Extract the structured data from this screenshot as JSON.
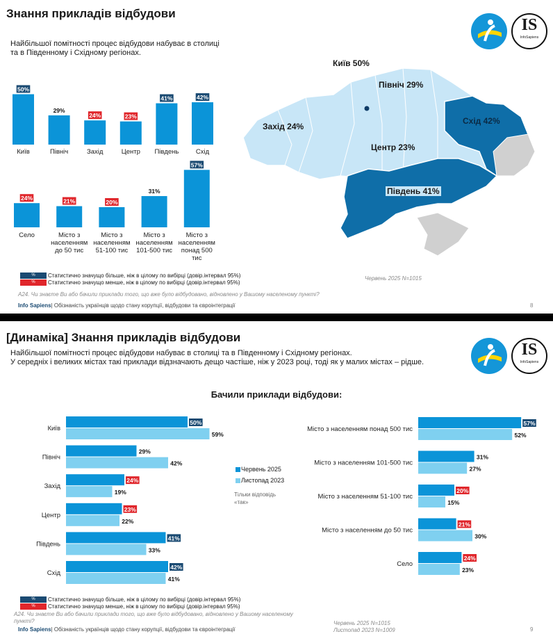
{
  "slide1": {
    "title": "Знання прикладів відбудови",
    "subtitle": "Найбільшої помітності процес відбудови набуває в столиці та в Південному і Східному регіонах.",
    "regions_chart": {
      "type": "bar",
      "categories": [
        "Київ",
        "Північ",
        "Захід",
        "Центр",
        "Південь",
        "Схід"
      ],
      "values": [
        50,
        29,
        24,
        23,
        41,
        42
      ],
      "value_labels": [
        "50%",
        "29%",
        "24%",
        "23%",
        "41%",
        "42%"
      ],
      "significance": [
        "higher",
        "none",
        "lower",
        "lower",
        "higher",
        "higher"
      ]
    },
    "settlement_chart": {
      "type": "bar",
      "categories": [
        "Село",
        "Місто з населенням до 50 тис",
        "Місто з населенням 51-100 тис",
        "Місто з населенням 101-500 тис",
        "Місто з населенням понад 500 тис"
      ],
      "values": [
        24,
        21,
        20,
        31,
        57
      ],
      "value_labels": [
        "24%",
        "21%",
        "20%",
        "31%",
        "57%"
      ],
      "significance": [
        "lower",
        "lower",
        "lower",
        "none",
        "higher"
      ]
    },
    "map_labels": {
      "kyiv": "Київ 50%",
      "north": "Північ 29%",
      "west": "Захід 24%",
      "east": "Схід 42%",
      "center": "Центр 23%",
      "south": "Південь 41%"
    },
    "legend_higher": "Статистично значущо більше, ніж в цілому по вибірці (довір.інтервал 95%)",
    "legend_lower": "Статистично значущо менше, ніж в цілому по вибірці (довір.інтервал 95%)",
    "legend_swatch_text": "%",
    "sample": "Червень 2025 N=1015",
    "question": "А24. Чи знаєте Ви або бачили приклади того, що вже було відбудовано, відновлено у Вашому населеному пункті?",
    "footer_brand": "Info Sapiens",
    "footer_text": "| Обізнаність українців щодо стану корупції, відбудови та євроінтеграції",
    "page": "8"
  },
  "slide2": {
    "title": "[Динаміка] Знання прикладів відбудови",
    "subtitle_line1": "Найбільшої помітності процес відбудови набуває в столиці та в Південному і Східному регіонах.",
    "subtitle_line2": "У середніх і великих містах такі приклади відзначають дещо частіше, ніж у 2023 році, тоді як у малих містах – рідше.",
    "chart_title": "Бачили приклади відбудови:",
    "legend_jun": "Червень 2025",
    "legend_nov": "Листопад 2023",
    "legend_note": "Тільки відповідь «так»",
    "legend_higher": "Статистично значущо більше, ніж в цілому по вибірці (довір.інтервал 95%)",
    "legend_lower": "Статистично значущо менше, ніж в цілому по вибірці (довір.інтервал 95%)",
    "legend_swatch_text": "%",
    "question": "А24. Чи знаєте Ви або бачили приклади того, що вже було відбудовано, відновлено у Вашому населеному пункті?",
    "sample_line1": "Червень 2025 N=1015",
    "sample_line2": "Листопад 2023 N=1009",
    "footer_brand": "Info Sapiens",
    "footer_text": "| Обізнаність українців щодо стану корупції, відбудови та євроінтеграції",
    "page": "9"
  },
  "logos": {
    "is_text": "IS",
    "is_sub": "InfoSapiens"
  },
  "colors": {
    "dark_blue": "#0b94d8",
    "light_blue": "#7fd0f0",
    "navy": "#1a4a72",
    "red": "#e0262b",
    "map_light": "#c8e6f7",
    "map_dark": "#0f6ea8",
    "map_grey": "#d0d0d0"
  },
  "chart_data": [
    {
      "type": "bar",
      "title": "",
      "categories": [
        "Київ",
        "Північ",
        "Захід",
        "Центр",
        "Південь",
        "Схід"
      ],
      "series": [
        {
          "values": [
            50,
            29,
            24,
            23,
            41,
            42
          ]
        }
      ],
      "ylim": [
        0,
        100
      ]
    },
    {
      "type": "bar",
      "title": "",
      "categories": [
        "Село",
        "Місто з населенням до 50 тис",
        "Місто з населенням 51-100 тис",
        "Місто з населенням 101-500 тис",
        "Місто з населенням понад 500 тис"
      ],
      "series": [
        {
          "values": [
            24,
            21,
            20,
            31,
            57
          ]
        }
      ],
      "ylim": [
        0,
        100
      ]
    },
    {
      "type": "bar",
      "orientation": "horizontal",
      "title": "Бачили приклади відбудови:",
      "categories": [
        "Київ",
        "Північ",
        "Захід",
        "Центр",
        "Південь",
        "Схід"
      ],
      "series": [
        {
          "name": "Червень 2025",
          "values": [
            50,
            29,
            24,
            23,
            41,
            42
          ],
          "labels": [
            "50%",
            "29%",
            "24%",
            "23%",
            "41%",
            "42%"
          ],
          "significance": [
            "higher",
            "none",
            "lower",
            "lower",
            "higher",
            "higher"
          ]
        },
        {
          "name": "Листопад 2023",
          "values": [
            59,
            42,
            19,
            22,
            33,
            41
          ],
          "labels": [
            "59%",
            "42%",
            "19%",
            "22%",
            "33%",
            "41%"
          ]
        }
      ],
      "xlim": [
        0,
        100
      ]
    },
    {
      "type": "bar",
      "orientation": "horizontal",
      "title": "",
      "categories": [
        "Місто з населенням понад 500 тис",
        "Місто з населенням 101-500 тис",
        "Місто з населенням 51-100 тис",
        "Місто з населенням до 50 тис",
        "Село"
      ],
      "series": [
        {
          "name": "Червень 2025",
          "values": [
            57,
            31,
            20,
            21,
            24
          ],
          "labels": [
            "57%",
            "31%",
            "20%",
            "21%",
            "24%"
          ],
          "significance": [
            "higher",
            "none",
            "lower",
            "lower",
            "lower"
          ]
        },
        {
          "name": "Листопад 2023",
          "values": [
            52,
            27,
            15,
            30,
            23
          ],
          "labels": [
            "52%",
            "27%",
            "15%",
            "30%",
            "23%"
          ]
        }
      ],
      "xlim": [
        0,
        100
      ]
    }
  ]
}
